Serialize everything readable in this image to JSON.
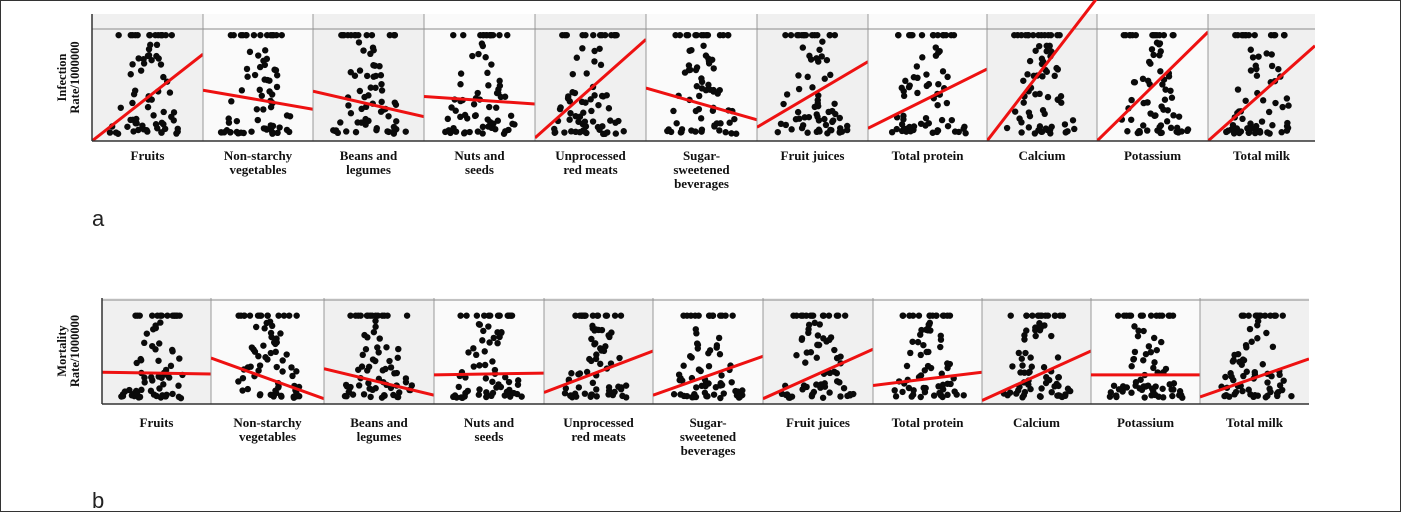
{
  "panel_labels": [
    "a",
    "b"
  ],
  "chart_data": [
    {
      "type": "scatter",
      "panel": "a",
      "ylabel_lines": [
        "Infection",
        "Rate/1000000"
      ],
      "categories": [
        "Fruits",
        "Non-starchy vegetables",
        "Beans and legumes",
        "Nuts and seeds",
        "Unprocessed red meats",
        "Sugar-sweetened beverages",
        "Fruit juices",
        "Total protein",
        "Calcium",
        "Potassium",
        "Total milk"
      ],
      "category_lines": [
        [
          "Fruits"
        ],
        [
          "Non-starchy",
          "vegetables"
        ],
        [
          "Beans and",
          "legumes"
        ],
        [
          "Nuts and",
          "seeds"
        ],
        [
          "Unprocessed",
          "red meats"
        ],
        [
          "Sugar-",
          "sweetened",
          "beverages"
        ],
        [
          "Fruit juices"
        ],
        [
          "Total protein"
        ],
        [
          "Calcium"
        ],
        [
          "Potassium"
        ],
        [
          "Total milk"
        ]
      ],
      "ylim": [
        0,
        1.2
      ],
      "fit_lines": [
        [
          0.0,
          0.82
        ],
        [
          0.48,
          0.3
        ],
        [
          0.47,
          0.23
        ],
        [
          0.42,
          0.35
        ],
        [
          0.03,
          0.96
        ],
        [
          0.5,
          0.2
        ],
        [
          0.13,
          0.75
        ],
        [
          0.12,
          0.68
        ],
        [
          0.0,
          1.35
        ],
        [
          0.0,
          1.03
        ],
        [
          0.0,
          0.9
        ]
      ],
      "grid": false
    },
    {
      "type": "scatter",
      "panel": "b",
      "ylabel_lines": [
        "Mortality",
        "Rate/1000000"
      ],
      "categories": [
        "Fruits",
        "Non-starchy vegetables",
        "Beans and legumes",
        "Nuts and seeds",
        "Unprocessed red meats",
        "Sugar-sweetened beverages",
        "Fruit juices",
        "Total protein",
        "Calcium",
        "Potassium",
        "Total milk"
      ],
      "category_lines": [
        [
          "Fruits"
        ],
        [
          "Non-starchy",
          "vegetables"
        ],
        [
          "Beans and",
          "legumes"
        ],
        [
          "Nuts and",
          "seeds"
        ],
        [
          "Unprocessed",
          "red meats"
        ],
        [
          "Sugar-",
          "sweetened",
          "beverages"
        ],
        [
          "Fruit juices"
        ],
        [
          "Total protein"
        ],
        [
          "Calcium"
        ],
        [
          "Potassium"
        ],
        [
          "Total milk"
        ]
      ],
      "ylim": [
        0,
        1.2
      ],
      "fit_lines": [
        [
          0.36,
          0.34
        ],
        [
          0.52,
          0.06
        ],
        [
          0.4,
          0.1
        ],
        [
          0.33,
          0.35
        ],
        [
          0.13,
          0.6
        ],
        [
          0.1,
          0.54
        ],
        [
          0.06,
          0.62
        ],
        [
          0.21,
          0.36
        ],
        [
          0.04,
          0.6
        ],
        [
          0.33,
          0.33
        ],
        [
          0.08,
          0.51
        ]
      ],
      "grid": false
    }
  ],
  "colors": {
    "dot": "#0a0a0a",
    "fit": "#ee1111",
    "axis": "#333333",
    "ref": "#8a8a8a",
    "panel_bg_left": "#f0f0f0",
    "panel_bg_right": "#fafafa"
  }
}
